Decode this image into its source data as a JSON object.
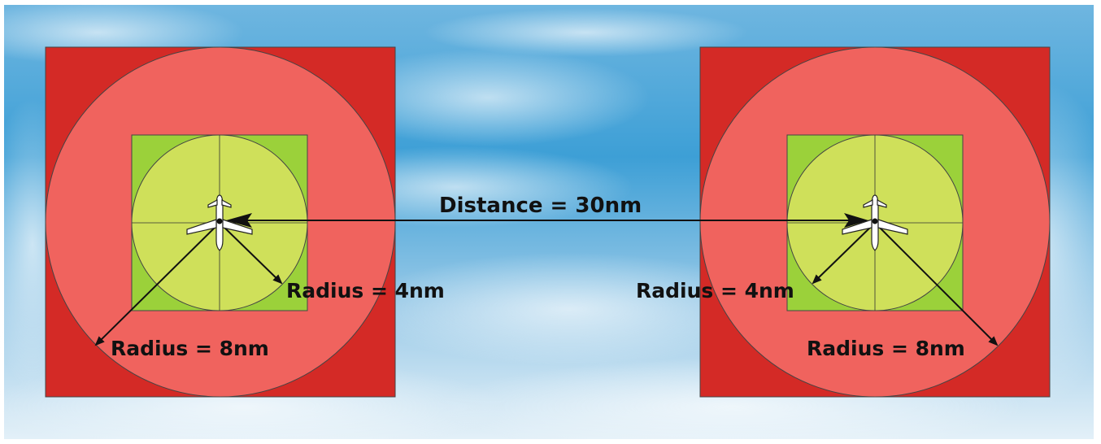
{
  "labels": {
    "distance": "Distance = 30nm",
    "left_inner_radius": "Radius = 4nm",
    "left_outer_radius": "Radius = 8nm",
    "right_inner_radius": "Radius = 4nm",
    "right_outer_radius": "Radius = 8nm"
  },
  "colors": {
    "sky_light": "#dceef7",
    "sky_mid": "#8fc7e6",
    "sky_deep": "#3d9fd6",
    "outer_square": "#d42a26",
    "outer_circle": "#f0635e",
    "inner_square": "#9bd13a",
    "inner_circle": "#cfe05a",
    "line": "#111111",
    "aircraft": "#ffffff"
  },
  "icons": {
    "aircraft": "airplane-icon"
  }
}
